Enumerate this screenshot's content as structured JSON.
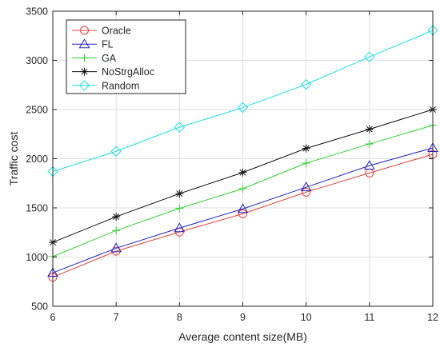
{
  "chart_data": {
    "type": "line",
    "title": "",
    "xlabel": "Average content size(MB)",
    "ylabel": "Traffic cost",
    "xlim": [
      6,
      12
    ],
    "ylim": [
      500,
      3500
    ],
    "x": [
      6,
      7,
      8,
      9,
      10,
      11,
      12
    ],
    "x_ticks": [
      "6",
      "7",
      "8",
      "9",
      "10",
      "11",
      "12"
    ],
    "y_ticks": [
      500,
      1000,
      1500,
      2000,
      2500,
      3000,
      3500
    ],
    "y_tick_labels": [
      "500",
      "1000",
      "1500",
      "2000",
      "2500",
      "3000",
      "3500"
    ],
    "grid": true,
    "legend_position": "top-left",
    "series": [
      {
        "name": "Oracle",
        "color": "#e8403a",
        "marker": "circle",
        "values": [
          795,
          1060,
          1255,
          1440,
          1660,
          1855,
          2045
        ]
      },
      {
        "name": "FL",
        "color": "#2222cc",
        "marker": "triangle",
        "values": [
          840,
          1090,
          1295,
          1490,
          1710,
          1930,
          2110
        ]
      },
      {
        "name": "GA",
        "color": "#2fd12f",
        "marker": "plus",
        "values": [
          1005,
          1270,
          1495,
          1695,
          1955,
          2150,
          2340
        ]
      },
      {
        "name": "NoStrgAlloc",
        "color": "#111111",
        "marker": "asterisk",
        "values": [
          1150,
          1410,
          1645,
          1860,
          2105,
          2300,
          2500
        ]
      },
      {
        "name": "Random",
        "color": "#19e0e6",
        "marker": "diamond",
        "values": [
          1870,
          2075,
          2320,
          2520,
          2755,
          3035,
          3305
        ]
      }
    ]
  }
}
